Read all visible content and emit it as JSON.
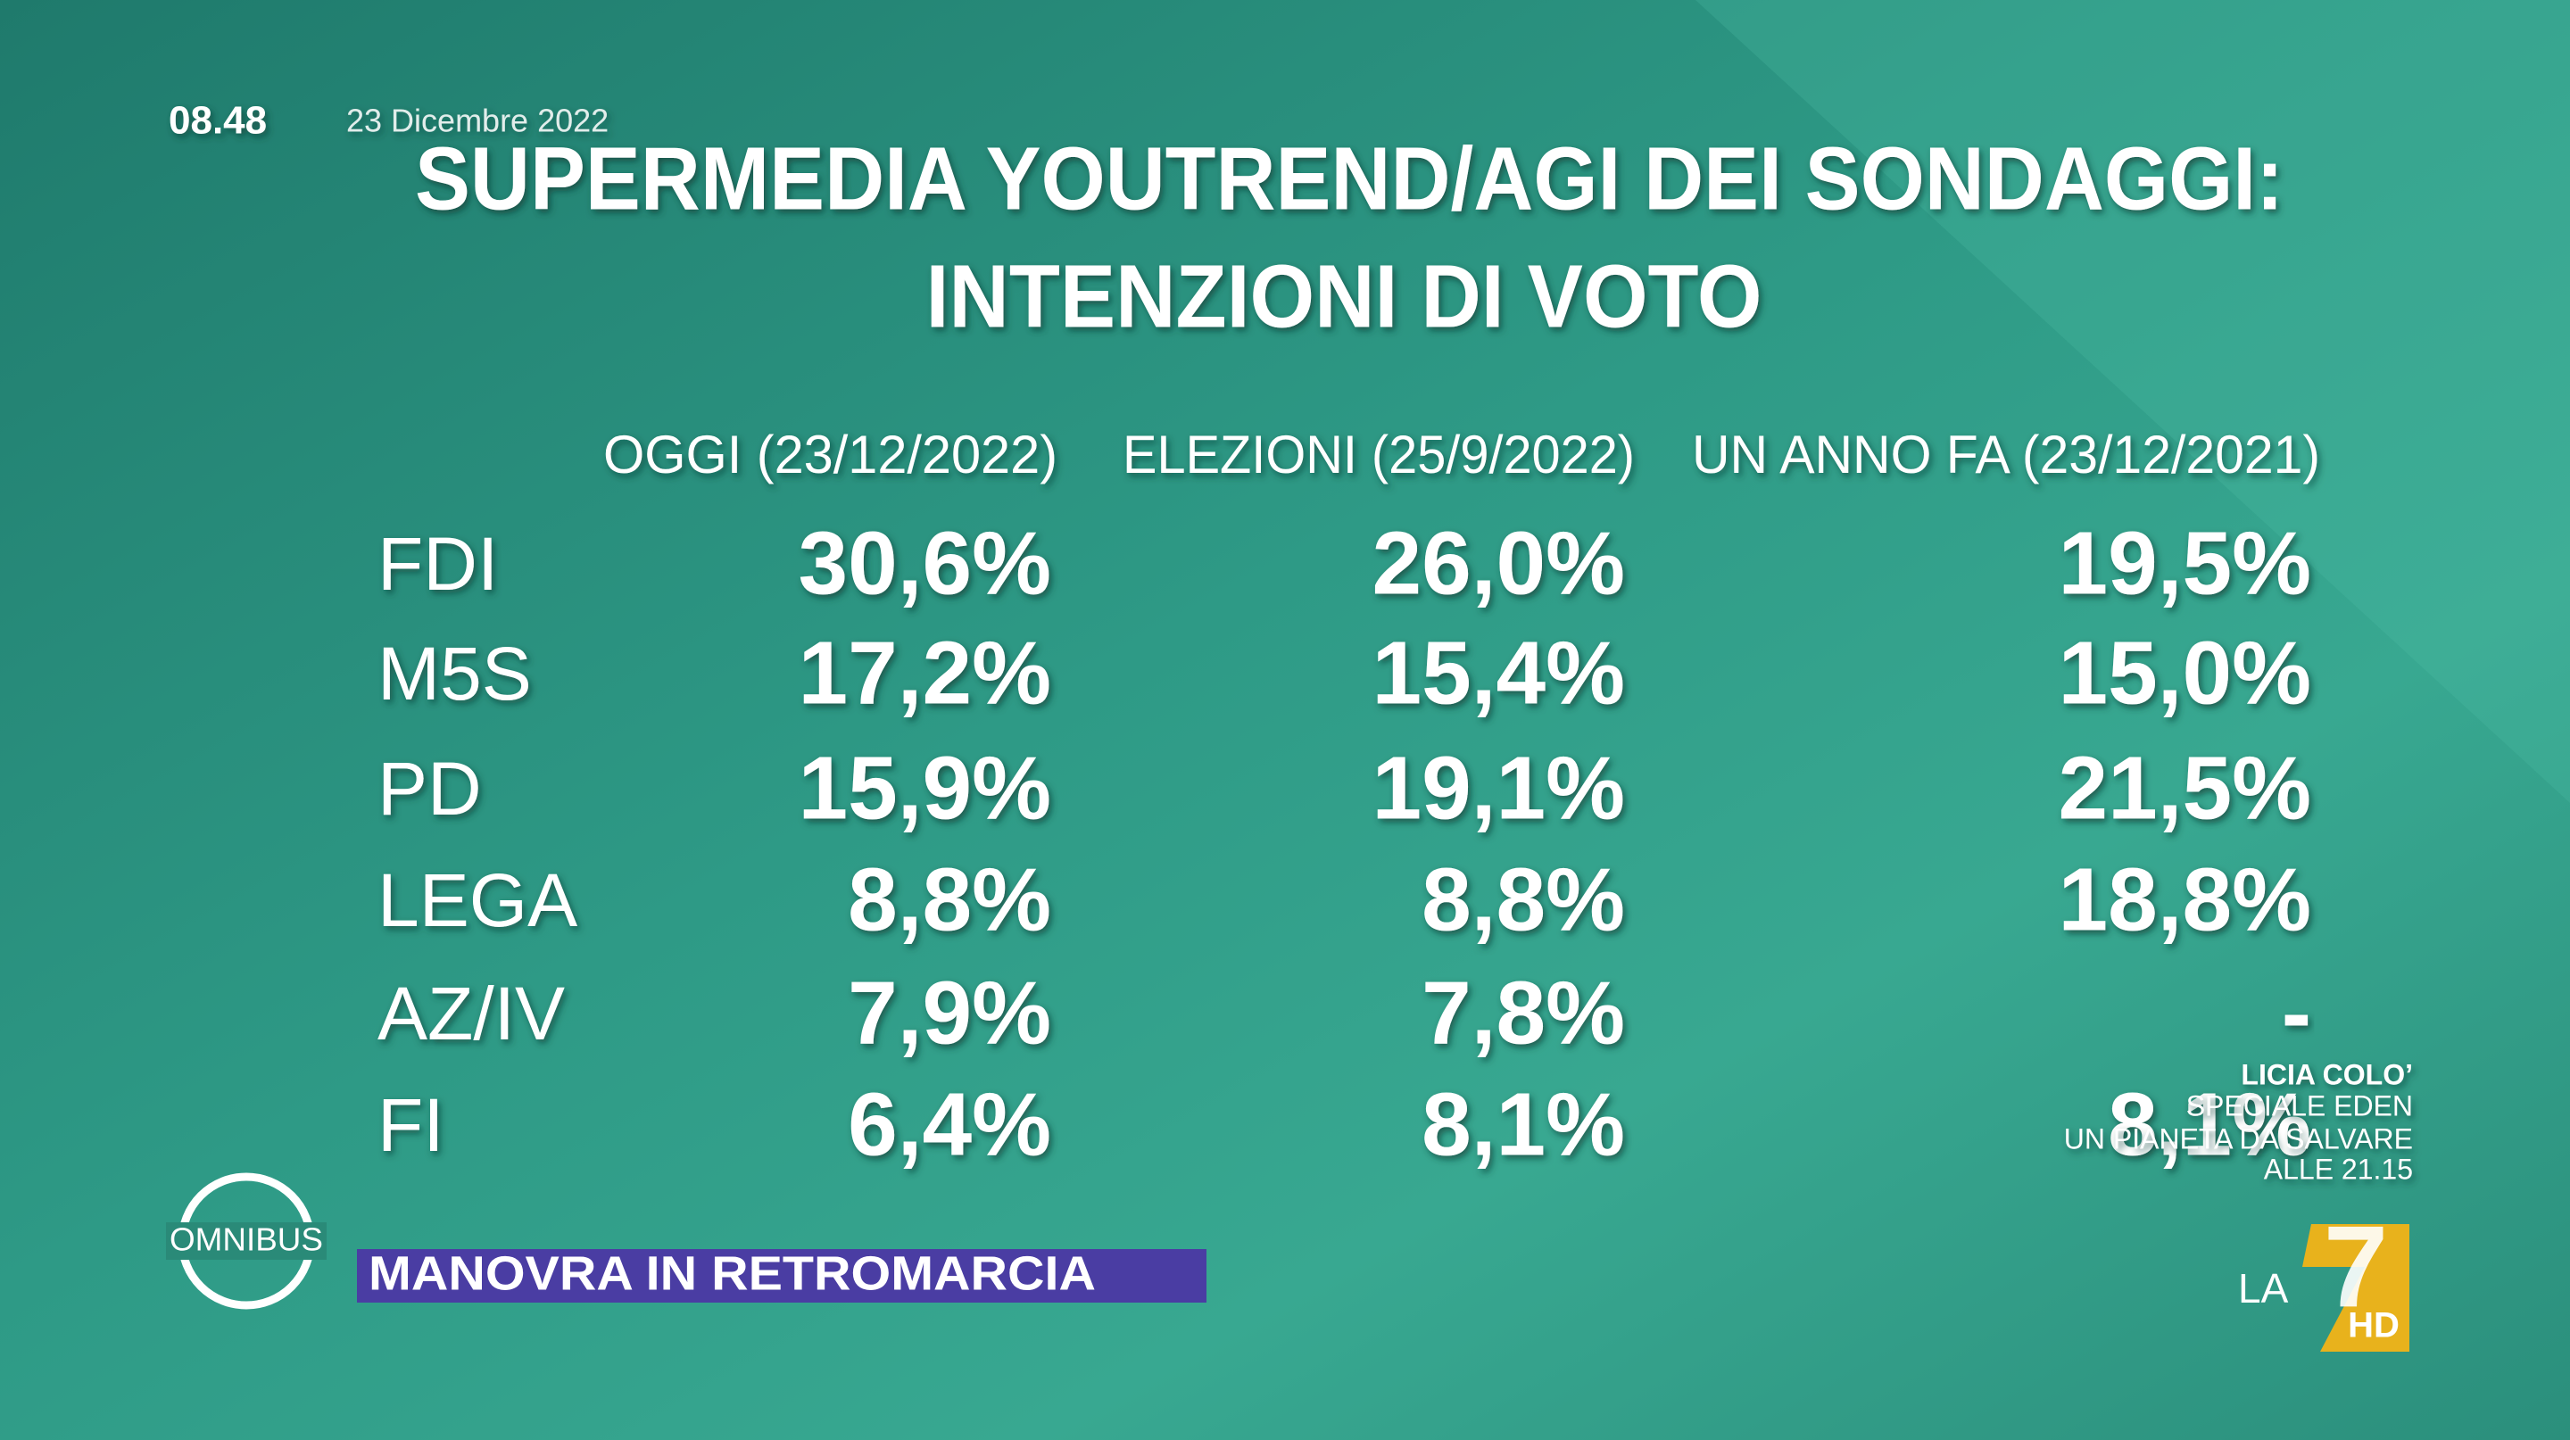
{
  "header": {
    "time": "08.48",
    "date": "23 Dicembre 2022"
  },
  "title": [
    "SUPERMEDIA YOUTREND/AGI DEI SONDAGGI:",
    "INTENZIONI DI VOTO"
  ],
  "table": {
    "columns": [
      "OGGI (23/12/2022)",
      "ELEZIONI (25/9/2022)",
      "UN ANNO FA (23/12/2021)"
    ],
    "rows": [
      [
        "FDI",
        "30,6%",
        "26,0%",
        "19,5%"
      ],
      [
        "M5S",
        "17,2%",
        "15,4%",
        "15,0%"
      ],
      [
        "PD",
        "15,9%",
        "19,1%",
        "21,5%"
      ],
      [
        "LEGA",
        "8,8%",
        "8,8%",
        "18,8%"
      ],
      [
        "AZ/IV",
        "7,9%",
        "7,8%",
        "-"
      ],
      [
        "FI",
        "6,4%",
        "8,1%",
        "8,1%"
      ]
    ]
  },
  "promo": [
    "LICIA COLO’",
    "SPECIALE EDEN",
    "UN PIANETA DA SALVARE",
    "ALLE 21.15"
  ],
  "show": "OMNIBUS",
  "banner": "MANOVRA IN RETROMARCIA",
  "channel": {
    "name": "LA",
    "number": "7",
    "suffix": "HD"
  }
}
